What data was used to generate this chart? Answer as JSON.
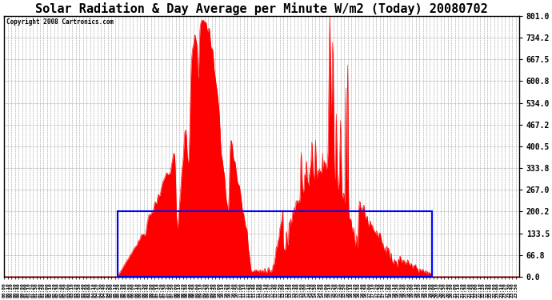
{
  "title": "Solar Radiation & Day Average per Minute W/m2 (Today) 20080702",
  "copyright": "Copyright 2008 Cartronics.com",
  "ymax": 801.0,
  "yticks": [
    0.0,
    66.8,
    133.5,
    200.2,
    267.0,
    333.8,
    400.5,
    467.2,
    534.0,
    600.8,
    667.5,
    734.2,
    801.0
  ],
  "background_color": "#ffffff",
  "plot_bg_color": "#ffffff",
  "fill_color": "#ff0000",
  "avg_box_color": "#0000ff",
  "avg_value": 200.2,
  "sunrise_min": 316,
  "sunset_min": 1196,
  "title_fontsize": 11,
  "grid_color": "#c0c0c0",
  "border_color": "#000000",
  "n_minutes": 1440
}
